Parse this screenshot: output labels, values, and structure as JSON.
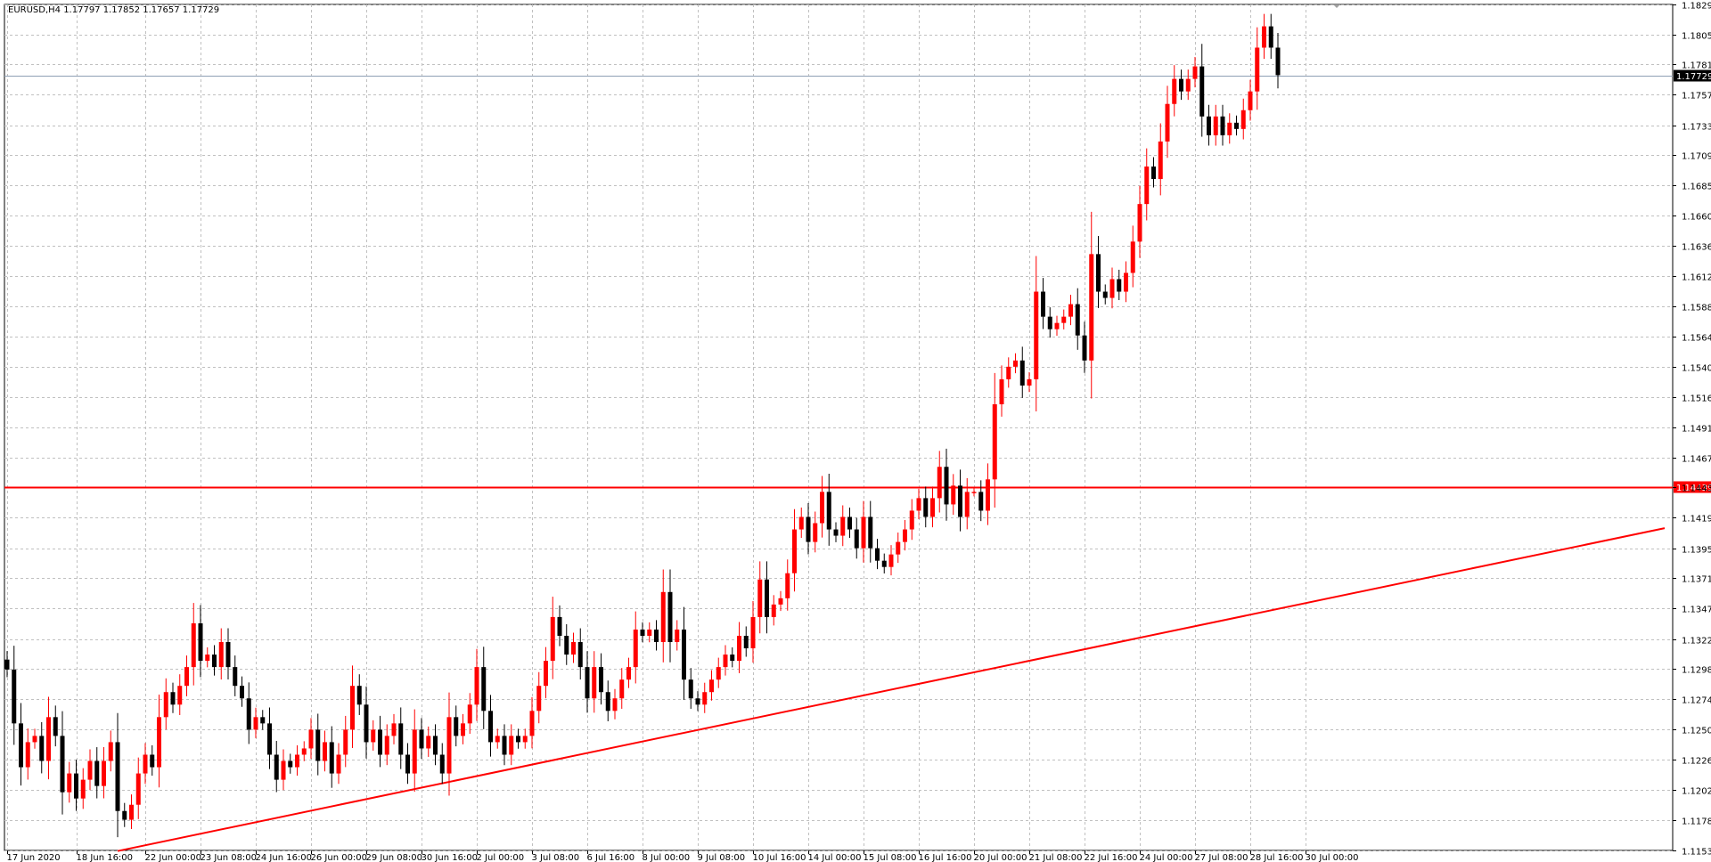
{
  "header": {
    "info": "EURUSD,H4  1.17797 1.17852 1.17657 1.17729"
  },
  "colors": {
    "bull": "#ff0000",
    "bear": "#000000",
    "grid": "#c0c0c0",
    "level_line": "#ff0000",
    "trend_line": "#ff0000",
    "bid_line": "#8fa0b4",
    "bid_label_bg": "#000000",
    "level_label_bg": "#ff0000"
  },
  "chart_data": {
    "type": "candlestick",
    "symbol": "EURUSD",
    "timeframe": "H4",
    "ylim": [
      1.11535,
      1.18295
    ],
    "y_ticks": [
      "1.18295",
      "1.18055",
      "1.17815",
      "1.17575",
      "1.17330",
      "1.17090",
      "1.16850",
      "1.16605",
      "1.16365",
      "1.16125",
      "1.15885",
      "1.15640",
      "1.15400",
      "1.15160",
      "1.14915",
      "1.14675",
      "1.14435",
      "1.14195",
      "1.13950",
      "1.13710",
      "1.13470",
      "1.13225",
      "1.12985",
      "1.12745",
      "1.12505",
      "1.12260",
      "1.12020",
      "1.11780",
      "1.11535"
    ],
    "x_ticks": [
      {
        "label": "17 Jun 2020",
        "bar": 0
      },
      {
        "label": "18 Jun 16:00",
        "bar": 10
      },
      {
        "label": "22 Jun 00:00",
        "bar": 20
      },
      {
        "label": "23 Jun 08:00",
        "bar": 28
      },
      {
        "label": "24 Jun 16:00",
        "bar": 36
      },
      {
        "label": "26 Jun 00:00",
        "bar": 44
      },
      {
        "label": "29 Jun 08:00",
        "bar": 52
      },
      {
        "label": "30 Jun 16:00",
        "bar": 60
      },
      {
        "label": "2 Jul 00:00",
        "bar": 68
      },
      {
        "label": "3 Jul 08:00",
        "bar": 76
      },
      {
        "label": "6 Jul 16:00",
        "bar": 84
      },
      {
        "label": "8 Jul 00:00",
        "bar": 92
      },
      {
        "label": "9 Jul 08:00",
        "bar": 100
      },
      {
        "label": "10 Jul 16:00",
        "bar": 108
      },
      {
        "label": "14 Jul 00:00",
        "bar": 116
      },
      {
        "label": "15 Jul 08:00",
        "bar": 124
      },
      {
        "label": "16 Jul 16:00",
        "bar": 132
      },
      {
        "label": "20 Jul 00:00",
        "bar": 140
      },
      {
        "label": "21 Jul 08:00",
        "bar": 148
      },
      {
        "label": "22 Jul 16:00",
        "bar": 156
      },
      {
        "label": "24 Jul 00:00",
        "bar": 164
      },
      {
        "label": "27 Jul 08:00",
        "bar": 172
      },
      {
        "label": "28 Jul 16:00",
        "bar": 180
      },
      {
        "label": "30 Jul 00:00",
        "bar": 188
      }
    ],
    "bid_price": "1.17729",
    "level_price": "1.14439",
    "trendline": [
      {
        "bar": 16,
        "price": 1.1153
      },
      {
        "bar": 240,
        "price": 1.1411
      }
    ],
    "candles_close": [
      1.1298,
      1.1255,
      1.122,
      1.124,
      1.1245,
      1.1225,
      1.126,
      1.1245,
      1.12,
      1.1215,
      1.1195,
      1.121,
      1.1225,
      1.1205,
      1.1225,
      1.124,
      1.1185,
      1.1178,
      1.119,
      1.1215,
      1.123,
      1.122,
      1.126,
      1.128,
      1.127,
      1.1285,
      1.13,
      1.1335,
      1.1305,
      1.131,
      1.13,
      1.132,
      1.13,
      1.1285,
      1.1275,
      1.125,
      1.126,
      1.1255,
      1.123,
      1.121,
      1.1225,
      1.122,
      1.123,
      1.1235,
      1.125,
      1.1225,
      1.124,
      1.1215,
      1.123,
      1.125,
      1.1285,
      1.127,
      1.124,
      1.125,
      1.123,
      1.1245,
      1.1255,
      1.123,
      1.1215,
      1.125,
      1.1235,
      1.1245,
      1.123,
      1.1215,
      1.126,
      1.1245,
      1.1255,
      1.127,
      1.13,
      1.1265,
      1.124,
      1.1245,
      1.123,
      1.1245,
      1.124,
      1.1245,
      1.1265,
      1.1285,
      1.1305,
      1.134,
      1.1325,
      1.131,
      1.132,
      1.13,
      1.1275,
      1.13,
      1.128,
      1.1265,
      1.1275,
      1.129,
      1.13,
      1.133,
      1.1325,
      1.133,
      1.132,
      1.136,
      1.132,
      1.133,
      1.129,
      1.1275,
      1.127,
      1.128,
      1.129,
      1.13,
      1.131,
      1.1305,
      1.1325,
      1.1315,
      1.134,
      1.137,
      1.134,
      1.135,
      1.1355,
      1.1375,
      1.141,
      1.142,
      1.14,
      1.1415,
      1.144,
      1.141,
      1.1405,
      1.142,
      1.141,
      1.1395,
      1.142,
      1.1395,
      1.1385,
      1.138,
      1.139,
      1.14,
      1.141,
      1.1425,
      1.1435,
      1.142,
      1.1435,
      1.146,
      1.143,
      1.1445,
      1.142,
      1.144,
      1.144,
      1.1425,
      1.145,
      1.151,
      1.153,
      1.154,
      1.1545,
      1.1525,
      1.153,
      1.16,
      1.158,
      1.157,
      1.1575,
      1.158,
      1.159,
      1.1565,
      1.1545,
      1.163,
      1.16,
      1.1595,
      1.161,
      1.16,
      1.1615,
      1.164,
      1.167,
      1.17,
      1.169,
      1.172,
      1.175,
      1.177,
      1.176,
      1.177,
      1.178,
      1.174,
      1.1725,
      1.174,
      1.1725,
      1.1735,
      1.173,
      1.1745,
      1.176,
      1.1795,
      1.1812,
      1.1795,
      1.1773
    ]
  }
}
